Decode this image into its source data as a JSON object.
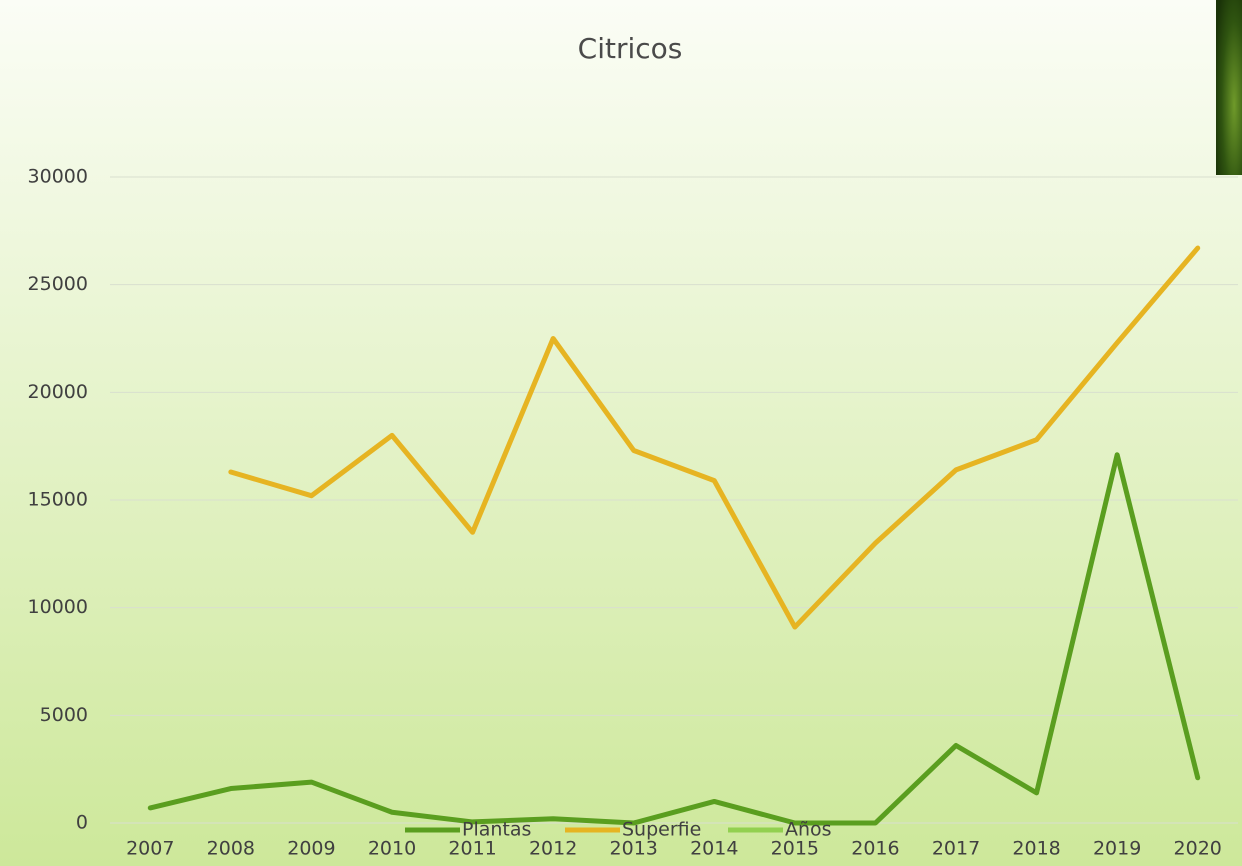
{
  "chart_data": {
    "type": "line",
    "title": "Citricos",
    "categories": [
      "2007",
      "2008",
      "2009",
      "2010",
      "2011",
      "2012",
      "2013",
      "2014",
      "2015",
      "2016",
      "2017",
      "2018",
      "2019",
      "2020"
    ],
    "series": [
      {
        "name": "Plantas",
        "color": "#5a9e1f",
        "values": [
          700,
          1600,
          1900,
          500,
          50,
          200,
          0,
          1000,
          0,
          0,
          3600,
          1400,
          17100,
          2100
        ]
      },
      {
        "name": "Superfie",
        "color": "#e6b422",
        "values": [
          null,
          16300,
          15200,
          18000,
          13500,
          22500,
          17300,
          15900,
          9100,
          13000,
          16400,
          17800,
          22300,
          26700
        ]
      },
      {
        "name": "Años",
        "color": "#92d050",
        "values": [
          null,
          null,
          null,
          null,
          null,
          null,
          null,
          null,
          null,
          null,
          null,
          null,
          null,
          null
        ]
      }
    ],
    "ylim": [
      0,
      30000
    ],
    "yticks": [
      0,
      5000,
      10000,
      15000,
      20000,
      25000,
      30000
    ],
    "grid": true,
    "legend": "bottom"
  }
}
